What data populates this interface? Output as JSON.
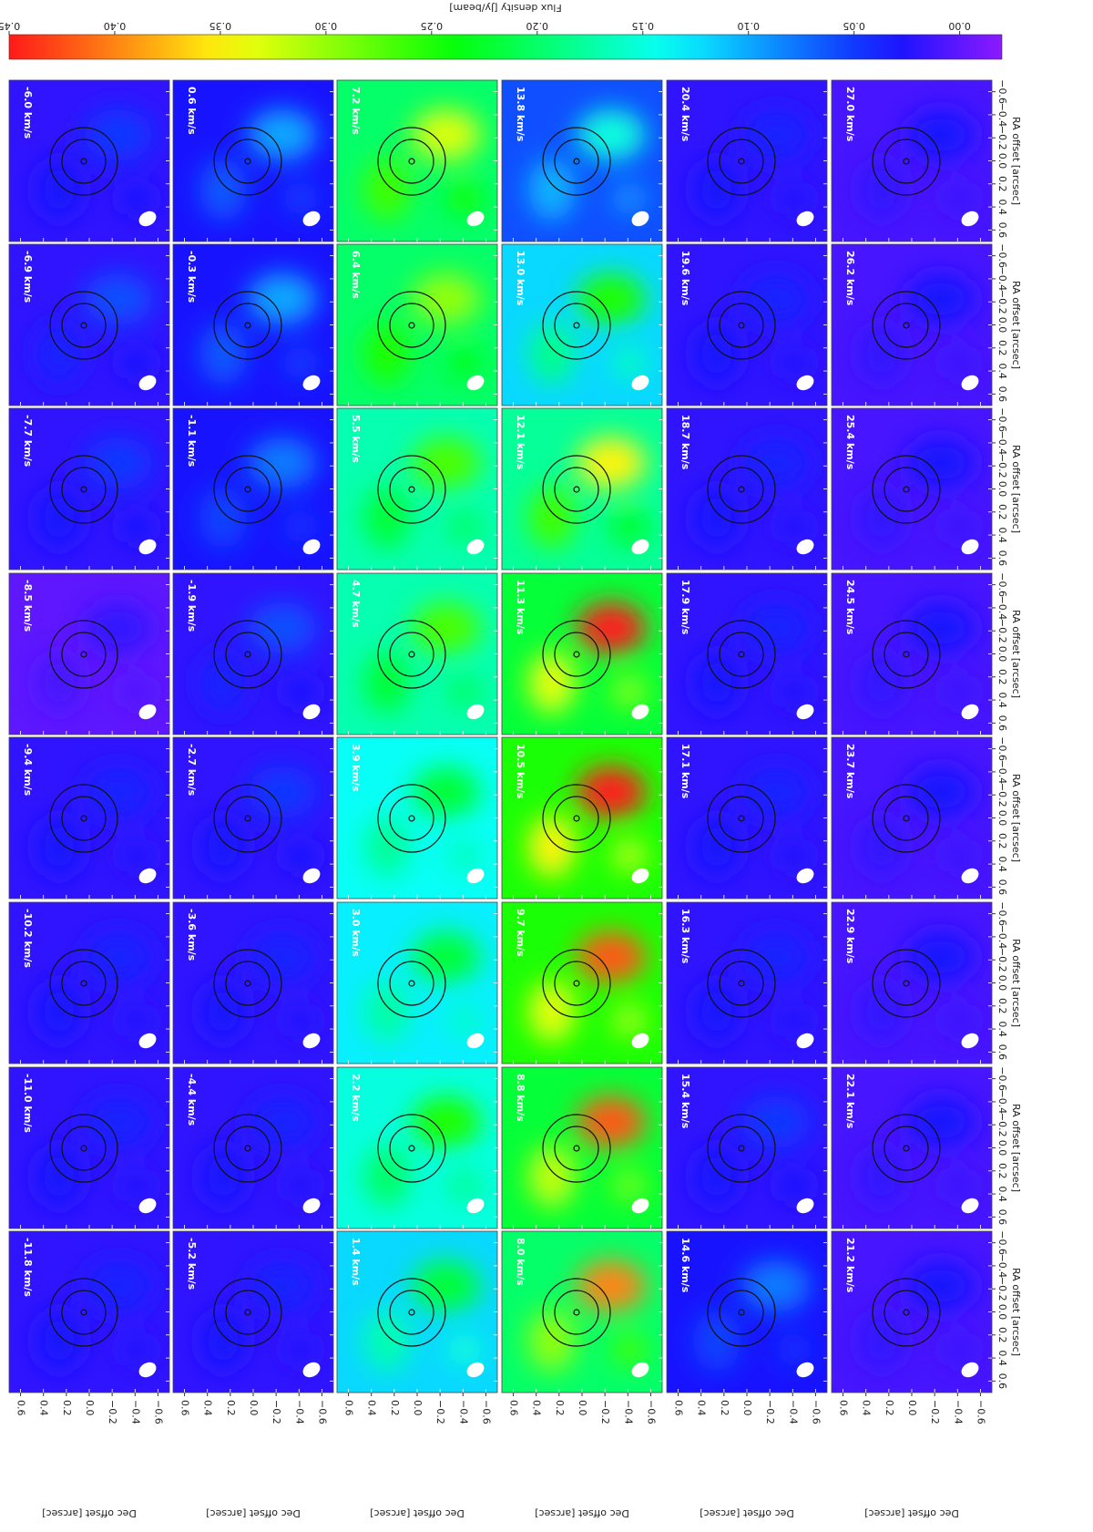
{
  "chart_data": {
    "type": "channel_map",
    "colorbar_label": "Flux density [Jy/beam]",
    "colormap": "rainbow",
    "clim": [
      -0.02,
      0.45
    ],
    "cticks": [
      0.45,
      {
        "value": 0.4,
        "label": "0.40"
      },
      0.35,
      {
        "value": 0.3,
        "label": "0.30"
      },
      0.25,
      {
        "value": 0.2,
        "label": "0.20"
      },
      0.15,
      {
        "value": 0.1,
        "label": "0.10"
      },
      0.05,
      {
        "value": 0,
        "label": "0.00"
      }
    ],
    "x_label": "Dec offset [arcsec]",
    "y_label": "RA offset [arcsec]",
    "xlim": [
      0.7,
      -0.7
    ],
    "ylim": [
      0.7,
      -0.7
    ],
    "xticks": [
      0.6,
      0.4,
      0.2,
      {
        "value": 0,
        "label": "0.0"
      },
      {
        "value": -0.2,
        "label": "−0.2"
      },
      {
        "value": -0.4,
        "label": "−0.4"
      },
      {
        "value": -0.6,
        "label": "−0.6"
      }
    ],
    "yticks": [
      0.6,
      0.4,
      0.2,
      {
        "value": 0,
        "label": "0.0"
      },
      {
        "value": -0.2,
        "label": "−0.2"
      },
      {
        "value": -0.4,
        "label": "−0.4"
      },
      {
        "value": -0.6,
        "label": "−0.6"
      }
    ],
    "channels": [
      "-11.8 km/s",
      "-11.0 km/s",
      "-10.2 km/s",
      "-9.4 km/s",
      "-8.5 km/s",
      "-7.7 km/s",
      "-6.9 km/s",
      "-6.0 km/s",
      "-5.2 km/s",
      "-4.4 km/s",
      "-3.6 km/s",
      "-2.7 km/s",
      "-1.9 km/s",
      "-1.1 km/s",
      "-0.3 km/s",
      "0.6 km/s",
      "1.4 km/s",
      "2.2 km/s",
      "3.0 km/s",
      "3.9 km/s",
      "4.7 km/s",
      "5.5 km/s",
      "6.4 km/s",
      "7.2 km/s",
      "8.0 km/s",
      "8.8 km/s",
      "9.7 km/s",
      "10.5 km/s",
      "11.3 km/s",
      "12.1 km/s",
      "13.0 km/s",
      "13.8 km/s",
      "14.6 km/s",
      "15.4 km/s",
      "16.3 km/s",
      "17.1 km/s",
      "17.9 km/s",
      "18.7 km/s",
      "19.6 km/s",
      "20.4 km/s",
      "21.2 km/s",
      "22.1 km/s",
      "22.9 km/s",
      "23.7 km/s",
      "24.5 km/s",
      "25.4 km/s",
      "26.2 km/s",
      "27.0 km/s"
    ],
    "mean_flux": [
      0.02,
      0.02,
      0.02,
      0.02,
      0.0,
      0.02,
      0.02,
      0.02,
      0.02,
      0.02,
      0.02,
      0.02,
      0.02,
      0.03,
      0.03,
      0.03,
      0.12,
      0.15,
      0.13,
      0.14,
      0.17,
      0.17,
      0.2,
      0.2,
      0.2,
      0.22,
      0.25,
      0.25,
      0.22,
      0.18,
      0.12,
      0.06,
      0.03,
      0.02,
      0.02,
      0.02,
      0.02,
      0.02,
      0.02,
      0.02,
      0.01,
      0.01,
      0.01,
      0.01,
      0.01,
      0.01,
      0.01,
      0.01
    ],
    "peak_flux": [
      0.04,
      0.04,
      0.04,
      0.04,
      0.02,
      0.05,
      0.06,
      0.05,
      0.04,
      0.04,
      0.04,
      0.05,
      0.06,
      0.08,
      0.1,
      0.1,
      0.22,
      0.25,
      0.22,
      0.22,
      0.27,
      0.27,
      0.3,
      0.33,
      0.4,
      0.42,
      0.42,
      0.45,
      0.45,
      0.35,
      0.25,
      0.15,
      0.08,
      0.05,
      0.04,
      0.04,
      0.04,
      0.04,
      0.04,
      0.04,
      0.03,
      0.03,
      0.03,
      0.03,
      0.03,
      0.03,
      0.03,
      0.03
    ]
  }
}
